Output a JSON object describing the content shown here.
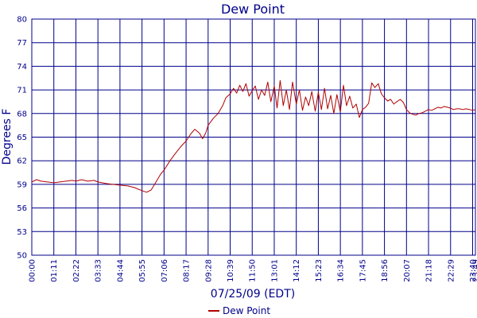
{
  "chart_data": {
    "type": "line",
    "title": "Dew Point",
    "xlabel": "07/25/09 (EDT)",
    "ylabel": "Degrees F",
    "ylim": [
      50,
      80
    ],
    "y_ticks": [
      "50",
      "53",
      "56",
      "59",
      "62",
      "65",
      "68",
      "71",
      "74",
      "77",
      "80"
    ],
    "x_ticks": [
      "00:00",
      "01:11",
      "02:22",
      "03:33",
      "04:44",
      "05:55",
      "07:06",
      "08:17",
      "09:28",
      "10:39",
      "11:50",
      "13:01",
      "14:12",
      "15:23",
      "16:34",
      "17:45",
      "18:56",
      "20:07",
      "21:18",
      "22:29",
      "23:40",
      "23:49"
    ],
    "x_unit": "minutes",
    "xlim": [
      0,
      1429
    ],
    "grid": true,
    "legend_position": "bottom",
    "series": [
      {
        "name": "Dew Point",
        "color": "#b00000",
        "points": [
          [
            0,
            59.3
          ],
          [
            15,
            59.6
          ],
          [
            30,
            59.4
          ],
          [
            50,
            59.3
          ],
          [
            71,
            59.2
          ],
          [
            90,
            59.3
          ],
          [
            110,
            59.4
          ],
          [
            130,
            59.5
          ],
          [
            142,
            59.4
          ],
          [
            160,
            59.6
          ],
          [
            180,
            59.4
          ],
          [
            200,
            59.5
          ],
          [
            213,
            59.3
          ],
          [
            240,
            59.1
          ],
          [
            260,
            59.0
          ],
          [
            284,
            58.9
          ],
          [
            310,
            58.8
          ],
          [
            330,
            58.6
          ],
          [
            355,
            58.2
          ],
          [
            370,
            58.0
          ],
          [
            385,
            58.3
          ],
          [
            400,
            59.3
          ],
          [
            415,
            60.3
          ],
          [
            426,
            60.8
          ],
          [
            445,
            62.0
          ],
          [
            460,
            62.8
          ],
          [
            480,
            63.8
          ],
          [
            497,
            64.5
          ],
          [
            512,
            65.4
          ],
          [
            525,
            66.0
          ],
          [
            540,
            65.5
          ],
          [
            550,
            64.8
          ],
          [
            560,
            65.5
          ],
          [
            568,
            66.5
          ],
          [
            585,
            67.4
          ],
          [
            600,
            68.0
          ],
          [
            615,
            69.0
          ],
          [
            625,
            70.0
          ],
          [
            639,
            70.5
          ],
          [
            650,
            71.2
          ],
          [
            660,
            70.6
          ],
          [
            670,
            71.6
          ],
          [
            680,
            70.8
          ],
          [
            690,
            71.8
          ],
          [
            700,
            70.2
          ],
          [
            710,
            70.9
          ],
          [
            720,
            71.5
          ],
          [
            730,
            69.8
          ],
          [
            740,
            71.0
          ],
          [
            750,
            70.3
          ],
          [
            760,
            72.0
          ],
          [
            770,
            69.5
          ],
          [
            781,
            71.5
          ],
          [
            790,
            68.7
          ],
          [
            800,
            72.2
          ],
          [
            810,
            69.0
          ],
          [
            820,
            71.0
          ],
          [
            830,
            68.5
          ],
          [
            840,
            72.0
          ],
          [
            852,
            69.2
          ],
          [
            862,
            71.0
          ],
          [
            872,
            68.4
          ],
          [
            882,
            70.1
          ],
          [
            892,
            69.0
          ],
          [
            902,
            70.8
          ],
          [
            913,
            68.3
          ],
          [
            923,
            70.7
          ],
          [
            933,
            68.5
          ],
          [
            943,
            71.2
          ],
          [
            953,
            68.6
          ],
          [
            963,
            70.3
          ],
          [
            973,
            68.0
          ],
          [
            983,
            70.4
          ],
          [
            994,
            68.2
          ],
          [
            1004,
            71.6
          ],
          [
            1014,
            69.0
          ],
          [
            1024,
            70.2
          ],
          [
            1034,
            68.7
          ],
          [
            1045,
            69.2
          ],
          [
            1055,
            67.5
          ],
          [
            1065,
            68.5
          ],
          [
            1075,
            68.8
          ],
          [
            1085,
            69.3
          ],
          [
            1095,
            71.9
          ],
          [
            1105,
            71.3
          ],
          [
            1116,
            71.8
          ],
          [
            1126,
            70.5
          ],
          [
            1136,
            70.0
          ],
          [
            1146,
            69.6
          ],
          [
            1156,
            69.8
          ],
          [
            1166,
            69.2
          ],
          [
            1176,
            69.5
          ],
          [
            1187,
            69.8
          ],
          [
            1197,
            69.4
          ],
          [
            1207,
            68.5
          ],
          [
            1217,
            68.1
          ],
          [
            1227,
            67.9
          ],
          [
            1237,
            67.8
          ],
          [
            1247,
            68.0
          ],
          [
            1258,
            68.1
          ],
          [
            1268,
            68.3
          ],
          [
            1278,
            68.5
          ],
          [
            1288,
            68.4
          ],
          [
            1298,
            68.6
          ],
          [
            1308,
            68.8
          ],
          [
            1318,
            68.7
          ],
          [
            1328,
            68.9
          ],
          [
            1338,
            68.8
          ],
          [
            1348,
            68.7
          ],
          [
            1358,
            68.5
          ],
          [
            1368,
            68.6
          ],
          [
            1378,
            68.6
          ],
          [
            1388,
            68.5
          ],
          [
            1398,
            68.6
          ],
          [
            1410,
            68.5
          ],
          [
            1420,
            68.4
          ],
          [
            1429,
            68.5
          ]
        ]
      }
    ]
  }
}
